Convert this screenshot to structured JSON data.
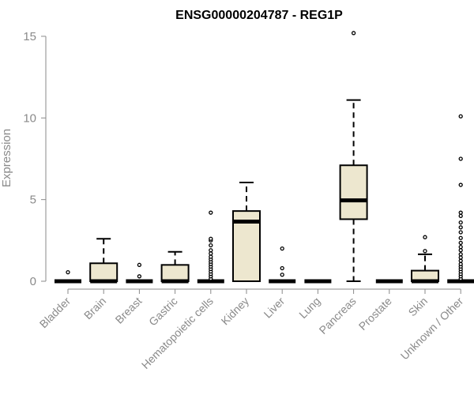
{
  "chart_data": {
    "type": "boxplot",
    "title": "ENSG00000204787 - REG1P",
    "xlabel": "",
    "ylabel": "Expression",
    "ylim": [
      0,
      15.5
    ],
    "yticks": [
      0,
      5,
      10,
      15
    ],
    "box_fill": "#ede7cf",
    "box_stroke": "#000000",
    "axis_color": "#8a8a8a",
    "categories": [
      "Bladder",
      "Brain",
      "Breast",
      "Gastric",
      "Hematopoietic cells",
      "Kidney",
      "Liver",
      "Lung",
      "Pancreas",
      "Prostate",
      "Skin",
      "Unknown / Other"
    ],
    "boxes": [
      {
        "category": "Bladder",
        "whisker_low": 0,
        "q1": 0,
        "median": 0,
        "q3": 0,
        "whisker_high": 0,
        "outliers": [
          0.55
        ]
      },
      {
        "category": "Brain",
        "whisker_low": 0,
        "q1": 0,
        "median": 0,
        "q3": 1.1,
        "whisker_high": 2.6,
        "outliers": []
      },
      {
        "category": "Breast",
        "whisker_low": 0,
        "q1": 0,
        "median": 0,
        "q3": 0,
        "whisker_high": 0,
        "outliers": [
          0.3,
          1.0
        ]
      },
      {
        "category": "Gastric",
        "whisker_low": 0,
        "q1": 0,
        "median": 0,
        "q3": 1.0,
        "whisker_high": 1.8,
        "outliers": []
      },
      {
        "category": "Hematopoietic cells",
        "whisker_low": 0,
        "q1": 0,
        "median": 0,
        "q3": 0,
        "whisker_high": 0,
        "outliers": [
          0.15,
          0.3,
          0.45,
          0.6,
          0.75,
          0.9,
          1.05,
          1.2,
          1.35,
          1.5,
          1.7,
          1.9,
          2.2,
          2.5,
          2.6,
          4.2
        ]
      },
      {
        "category": "Kidney",
        "whisker_low": 0,
        "q1": 0,
        "median": 3.65,
        "q3": 4.3,
        "whisker_high": 6.05,
        "outliers": []
      },
      {
        "category": "Liver",
        "whisker_low": 0,
        "q1": 0,
        "median": 0,
        "q3": 0,
        "whisker_high": 0,
        "outliers": [
          0.4,
          0.8,
          2.0
        ]
      },
      {
        "category": "Lung",
        "whisker_low": 0,
        "q1": 0,
        "median": 0,
        "q3": 0,
        "whisker_high": 0,
        "outliers": []
      },
      {
        "category": "Pancreas",
        "whisker_low": 0,
        "q1": 3.8,
        "median": 4.95,
        "q3": 7.1,
        "whisker_high": 11.1,
        "outliers": [
          15.2
        ]
      },
      {
        "category": "Prostate",
        "whisker_low": 0,
        "q1": 0,
        "median": 0,
        "q3": 0,
        "whisker_high": 0,
        "outliers": []
      },
      {
        "category": "Skin",
        "whisker_low": 0,
        "q1": 0,
        "median": 0,
        "q3": 0.65,
        "whisker_high": 1.65,
        "outliers": [
          1.85,
          2.7
        ]
      },
      {
        "category": "Unknown / Other",
        "whisker_low": 0,
        "q1": 0,
        "median": 0,
        "q3": 0,
        "whisker_high": 0,
        "outliers": [
          0.15,
          0.3,
          0.45,
          0.6,
          0.75,
          0.9,
          1.05,
          1.25,
          1.45,
          1.65,
          1.9,
          2.1,
          2.35,
          2.65,
          3.0,
          3.3,
          3.6,
          4.0,
          4.2,
          5.9,
          7.5,
          10.1
        ]
      }
    ]
  }
}
